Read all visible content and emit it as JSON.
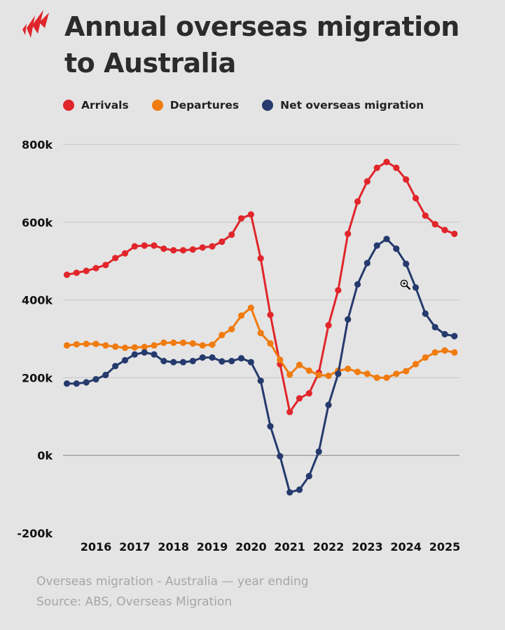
{
  "header": {
    "logo_icon": "sbs-logo-icon",
    "title_line1": "Annual overseas migration",
    "title_line2": "to Australia"
  },
  "legend": {
    "items": [
      {
        "label": "Arrivals",
        "color": "#e0262b"
      },
      {
        "label": "Departures",
        "color": "#f07b10"
      },
      {
        "label": "Net overseas migration",
        "color": "#253a6d"
      }
    ]
  },
  "chart_data": {
    "type": "line",
    "title": "Annual overseas migration to Australia",
    "xlabel": "",
    "ylabel": "",
    "ylim": [
      -200000,
      800000
    ],
    "yticks": [
      -200000,
      0,
      200000,
      400000,
      600000,
      800000
    ],
    "ytick_labels": [
      "-200k",
      "0k",
      "200k",
      "400k",
      "600k",
      "800k"
    ],
    "xticks": [
      2016,
      2017,
      2018,
      2019,
      2020,
      2021,
      2022,
      2023,
      2024,
      2025
    ],
    "xtick_labels": [
      "2016",
      "2017",
      "2018",
      "2019",
      "2020",
      "2021",
      "2022",
      "2023",
      "2024",
      "2025"
    ],
    "x_start": 2015.25,
    "x_step": 0.25,
    "grid": "horizontal",
    "legend_position": "top-left",
    "series": [
      {
        "name": "Arrivals",
        "color": "#e0262b",
        "values": [
          465000,
          470000,
          475000,
          482000,
          490000,
          508000,
          520000,
          538000,
          540000,
          540000,
          532000,
          528000,
          528000,
          530000,
          535000,
          538000,
          550000,
          568000,
          610000,
          620000,
          507000,
          362000,
          235000,
          112000,
          147000,
          160000,
          213000,
          335000,
          425000,
          570000,
          653000,
          705000,
          740000,
          755000,
          740000,
          710000,
          662000,
          617000,
          595000,
          580000,
          570000
        ]
      },
      {
        "name": "Departures",
        "color": "#f07b10",
        "values": [
          283000,
          286000,
          287000,
          287000,
          283000,
          280000,
          277000,
          278000,
          279000,
          283000,
          290000,
          290000,
          290000,
          288000,
          283000,
          285000,
          310000,
          325000,
          360000,
          380000,
          315000,
          288000,
          246000,
          208000,
          233000,
          218000,
          207000,
          205000,
          218000,
          223000,
          215000,
          210000,
          200000,
          200000,
          210000,
          217000,
          235000,
          252000,
          265000,
          270000,
          265000
        ]
      },
      {
        "name": "Net overseas migration",
        "color": "#253a6d",
        "values": [
          185000,
          185000,
          188000,
          196000,
          207000,
          230000,
          245000,
          260000,
          265000,
          260000,
          243000,
          240000,
          240000,
          243000,
          252000,
          252000,
          242000,
          243000,
          250000,
          240000,
          192000,
          75000,
          -2000,
          -95000,
          -88000,
          -53000,
          10000,
          130000,
          210000,
          350000,
          440000,
          495000,
          540000,
          557000,
          532000,
          493000,
          432000,
          365000,
          330000,
          312000,
          307000
        ]
      }
    ]
  },
  "footer": {
    "line1": "Overseas migration - Australia — year ending",
    "line2": "Source: ABS, Overseas Migration"
  },
  "cursor": {
    "icon": "zoom-in-cursor-icon"
  }
}
